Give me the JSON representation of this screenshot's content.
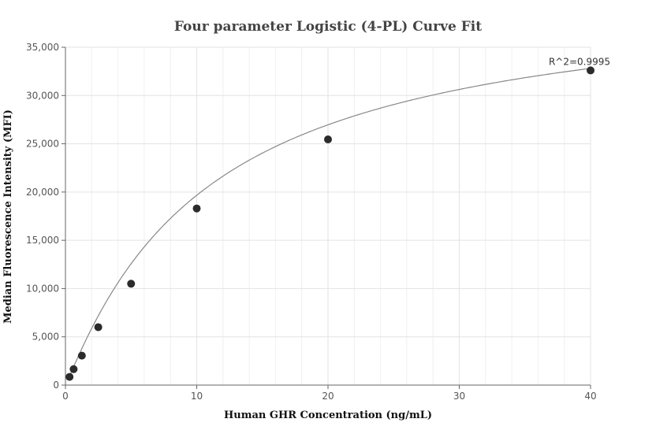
{
  "chart_data": {
    "type": "scatter",
    "title": "Four parameter Logistic (4-PL) Curve Fit",
    "xlabel": "Human GHR Concentration (ng/mL)",
    "ylabel": "Median Fluorescence Intensity (MFI)",
    "xlim": [
      0,
      40
    ],
    "ylim": [
      0,
      35000
    ],
    "x_ticks": [
      0,
      10,
      20,
      30,
      40
    ],
    "y_ticks": [
      0,
      5000,
      10000,
      15000,
      20000,
      25000,
      30000,
      35000
    ],
    "y_tick_labels": [
      "0",
      "5,000",
      "10,000",
      "15,000",
      "20,000",
      "25,000",
      "30,000",
      "35,000"
    ],
    "grid": true,
    "series": [
      {
        "x": [
          0.3125,
          0.625,
          1.25,
          2.5,
          5,
          10,
          20,
          40
        ],
        "y": [
          850,
          1650,
          3050,
          6000,
          10500,
          18300,
          25450,
          32600
        ]
      }
    ],
    "fit_curve": {
      "model": "4-PL",
      "a": 0,
      "b": 1.06,
      "c": 10.8,
      "d": 41000,
      "color": "#888888"
    },
    "annotation": "R^2=0.9995",
    "point_color": "#2b2b2b"
  }
}
